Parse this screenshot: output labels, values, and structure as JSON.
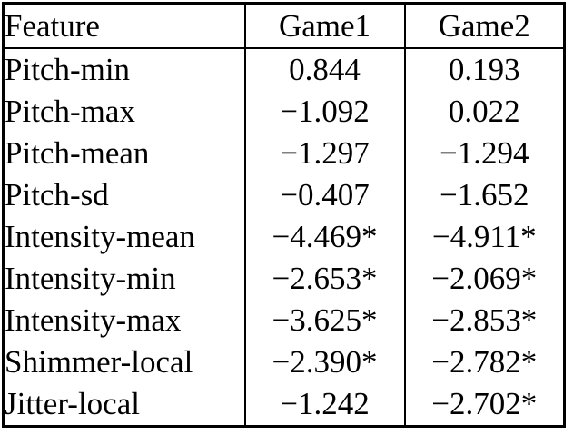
{
  "table": {
    "header": [
      "Feature",
      "Game1",
      "Game2"
    ],
    "rows": [
      [
        "Pitch-min",
        "0.844",
        "0.193"
      ],
      [
        "Pitch-max",
        "−1.092",
        "0.022"
      ],
      [
        "Pitch-mean",
        "−1.297",
        "−1.294"
      ],
      [
        "Pitch-sd",
        "−0.407",
        "−1.652"
      ],
      [
        "Intensity-mean",
        "−4.469*",
        "−4.911*"
      ],
      [
        "Intensity-min",
        "−2.653*",
        "−2.069*"
      ],
      [
        "Intensity-max",
        "−3.625*",
        "−2.853*"
      ],
      [
        "Shimmer-local",
        "−2.390*",
        "−2.782*"
      ],
      [
        "Jitter-local",
        "−1.242",
        "−2.702*"
      ]
    ]
  },
  "colors": {
    "text": "#000000",
    "border": "#000000",
    "background": "#ffffff"
  },
  "chart_data": {
    "type": "table",
    "title": "",
    "columns": [
      "Feature",
      "Game1",
      "Game2"
    ],
    "rows": [
      {
        "feature": "Pitch-min",
        "game1": 0.844,
        "game2": 0.193,
        "game1_significant": false,
        "game2_significant": false
      },
      {
        "feature": "Pitch-max",
        "game1": -1.092,
        "game2": 0.022,
        "game1_significant": false,
        "game2_significant": false
      },
      {
        "feature": "Pitch-mean",
        "game1": -1.297,
        "game2": -1.294,
        "game1_significant": false,
        "game2_significant": false
      },
      {
        "feature": "Pitch-sd",
        "game1": -0.407,
        "game2": -1.652,
        "game1_significant": false,
        "game2_significant": false
      },
      {
        "feature": "Intensity-mean",
        "game1": -4.469,
        "game2": -4.911,
        "game1_significant": true,
        "game2_significant": true
      },
      {
        "feature": "Intensity-min",
        "game1": -2.653,
        "game2": -2.069,
        "game1_significant": true,
        "game2_significant": true
      },
      {
        "feature": "Intensity-max",
        "game1": -3.625,
        "game2": -2.853,
        "game1_significant": true,
        "game2_significant": true
      },
      {
        "feature": "Shimmer-local",
        "game1": -2.39,
        "game2": -2.782,
        "game1_significant": true,
        "game2_significant": true
      },
      {
        "feature": "Jitter-local",
        "game1": -1.242,
        "game2": -2.702,
        "game1_significant": false,
        "game2_significant": true
      }
    ]
  }
}
